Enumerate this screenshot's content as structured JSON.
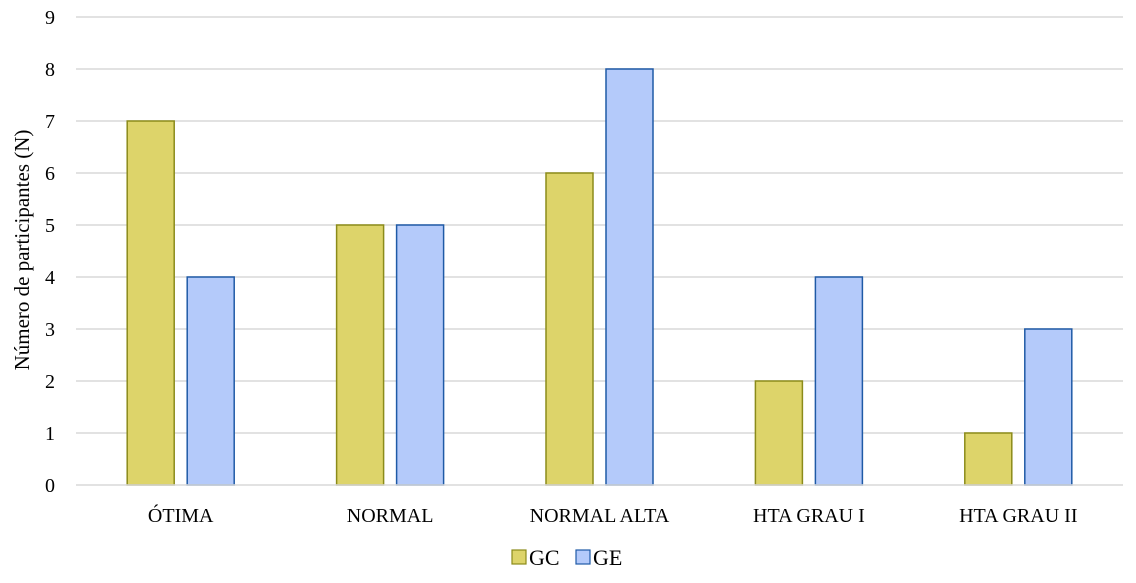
{
  "chart_data": {
    "type": "bar",
    "title": "",
    "xlabel": "",
    "ylabel": "Número de participantes (N)",
    "ylim": [
      0,
      9
    ],
    "yticks": [
      0,
      1,
      2,
      3,
      4,
      5,
      6,
      7,
      8,
      9
    ],
    "grid": true,
    "legend_position": "bottom-center",
    "categories": [
      "ÓTIMA",
      "NORMAL",
      "NORMAL ALTA",
      "HTA GRAU I",
      "HTA GRAU II"
    ],
    "series": [
      {
        "name": "GC",
        "values": [
          7,
          5,
          6,
          2,
          1
        ],
        "fill_color": "#DDD46A",
        "stroke_color": "#8B8B1A"
      },
      {
        "name": "GE",
        "values": [
          4,
          5,
          8,
          4,
          3
        ],
        "fill_color": "#B4CAFA",
        "stroke_color": "#1F5AA6"
      }
    ],
    "grid_color": "#D9D9D9"
  }
}
